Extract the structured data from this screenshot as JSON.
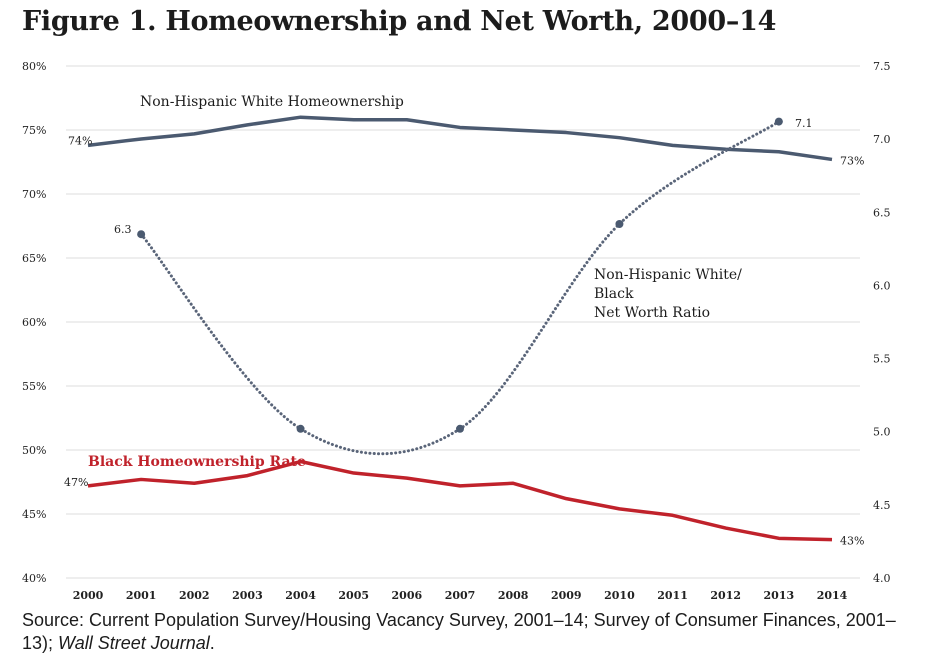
{
  "title": "Figure 1. Homeownership and Net Worth, 2000–14",
  "source": {
    "text": "Source: Current Population Survey/Housing Vacancy Survey, 2001–14; Survey of Consumer Finances, 2001–13); ",
    "italic": "Wall Street Journal",
    "end": "."
  },
  "chart_data": {
    "type": "line",
    "x": [
      2000,
      2001,
      2002,
      2003,
      2004,
      2005,
      2006,
      2007,
      2008,
      2009,
      2010,
      2011,
      2012,
      2013,
      2014
    ],
    "x_tick_labels": [
      "2000",
      "2001",
      "2002",
      "2003",
      "2004",
      "2005",
      "2006",
      "2007",
      "2008",
      "2009",
      "2010",
      "2011",
      "2012",
      "2013",
      "2014"
    ],
    "y_left": {
      "range": [
        40,
        80
      ],
      "ticks": [
        40,
        45,
        50,
        55,
        60,
        65,
        70,
        75,
        80
      ],
      "tick_labels": [
        "40%",
        "45%",
        "50%",
        "55%",
        "60%",
        "65%",
        "70%",
        "75%",
        "80%"
      ]
    },
    "y_right": {
      "range": [
        4.0,
        7.5
      ],
      "ticks": [
        4.0,
        4.5,
        5.0,
        5.5,
        6.0,
        6.5,
        7.0,
        7.5
      ],
      "tick_labels": [
        "4.0",
        "4.5",
        "5.0",
        "5.5",
        "6.0",
        "6.5",
        "7.0",
        "7.5"
      ]
    },
    "grid": "horizontal",
    "series": [
      {
        "name": "Non-Hispanic White Homeownership",
        "axis": "left",
        "style": "solid",
        "color": "#4b5a70",
        "values": [
          73.8,
          74.3,
          74.7,
          75.4,
          76.0,
          75.8,
          75.8,
          75.2,
          75.0,
          74.8,
          74.4,
          73.8,
          73.5,
          73.3,
          72.7
        ],
        "start_label": "74%",
        "end_label": "73%"
      },
      {
        "name": "Black Homeownership Rate",
        "axis": "left",
        "style": "solid",
        "color": "#c0222b",
        "values": [
          47.2,
          47.7,
          47.4,
          48.0,
          49.1,
          48.2,
          47.8,
          47.2,
          47.4,
          46.2,
          45.4,
          44.9,
          43.9,
          43.1,
          43.0
        ],
        "start_label": "47%",
        "end_label": "43%"
      },
      {
        "name": "Non-Hispanic White/ Black Net Worth Ratio",
        "label_lines": [
          "Non-Hispanic White/",
          "Black",
          "Net Worth Ratio"
        ],
        "axis": "right",
        "style": "dotted",
        "color": "#5a6579",
        "x": [
          2001,
          2004,
          2007,
          2010,
          2013
        ],
        "values": [
          6.35,
          5.02,
          5.02,
          6.42,
          7.12
        ],
        "start_label": "6.3",
        "end_label": "7.1"
      }
    ]
  }
}
